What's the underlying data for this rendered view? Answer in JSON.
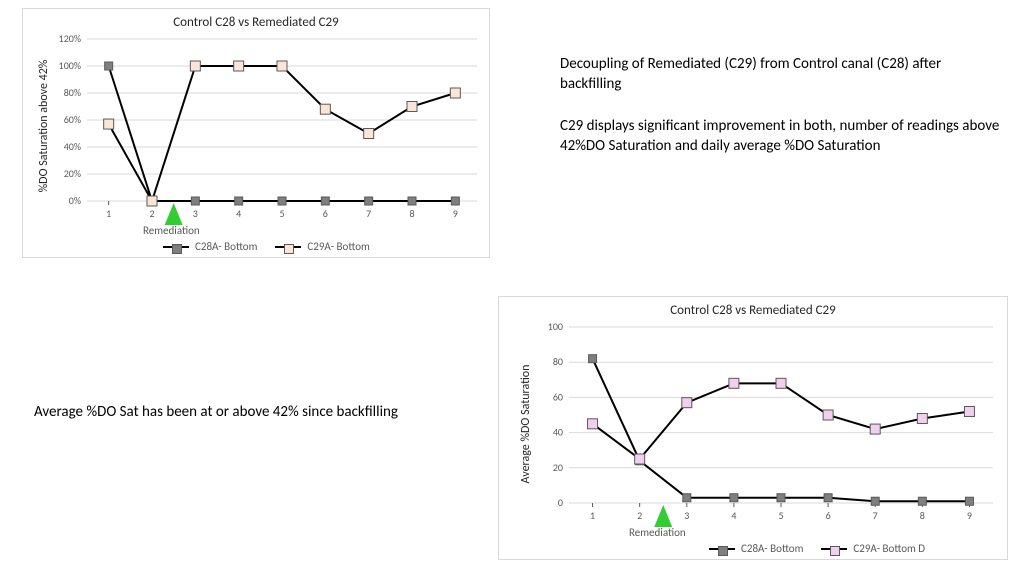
{
  "colors": {
    "page_bg": "#ffffff",
    "chart_border": "#d9d9d9",
    "gridline": "#d9d9d9",
    "axis_text": "#595959",
    "title_text": "#262626",
    "line_color": "#000000",
    "marker_border": "#595959",
    "c28_fill": "#7f7f7f",
    "c29_fill_chart1": "#fbe5d6",
    "c29_fill_chart2": "#f2ceef",
    "arrow_fill": "#33cc33"
  },
  "chart1": {
    "type": "line",
    "title": "Control C28  vs Remediated C29",
    "y_label": "%DO Saturation above 42%",
    "y_suffix": "%",
    "ylim": [
      0,
      120
    ],
    "ytick_step": 20,
    "x_categories": [
      "1",
      "2",
      "3",
      "4",
      "5",
      "6",
      "7",
      "8",
      "9"
    ],
    "series": [
      {
        "name": "C28A- Bottom",
        "fill": "#7f7f7f",
        "values": [
          100,
          0,
          0,
          0,
          0,
          0,
          0,
          0,
          0
        ],
        "marker_size": 8
      },
      {
        "name": "C29A- Bottom",
        "fill": "#fbe5d6",
        "values": [
          57,
          0,
          100,
          100,
          100,
          68,
          50,
          70,
          80
        ],
        "marker_size": 10
      }
    ],
    "title_fontsize": 13,
    "label_fontsize": 12,
    "tick_fontsize": 10,
    "line_width": 2,
    "remediation_index": 1.5,
    "remediation_label": "Remediation"
  },
  "chart2": {
    "type": "line",
    "title": "Control C28  vs Remediated C29",
    "y_label": "Average %DO Saturation",
    "y_suffix": "",
    "ylim": [
      0,
      100
    ],
    "ytick_step": 20,
    "x_categories": [
      "1",
      "2",
      "3",
      "4",
      "5",
      "6",
      "7",
      "8",
      "9"
    ],
    "series": [
      {
        "name": "C28A- Bottom",
        "fill": "#7f7f7f",
        "values": [
          82,
          24,
          3,
          3,
          3,
          3,
          1,
          1,
          1
        ],
        "marker_size": 8
      },
      {
        "name": "C29A- Bottom D",
        "fill": "#f2ceef",
        "values": [
          45,
          25,
          57,
          68,
          68,
          50,
          42,
          48,
          52
        ],
        "marker_size": 10
      }
    ],
    "title_fontsize": 13,
    "label_fontsize": 12,
    "tick_fontsize": 10,
    "line_width": 2,
    "remediation_index": 1.5,
    "remediation_label": "Remediation"
  },
  "captions": {
    "right_top_1": "Decoupling of Remediated (C29) from Control canal (C28) after backfilling",
    "right_top_2": "C29 displays significant improvement in both, number of readings above 42%DO Saturation and daily average %DO Saturation",
    "left_bottom": "Average %DO Sat has been at or above 42% since backfilling"
  }
}
